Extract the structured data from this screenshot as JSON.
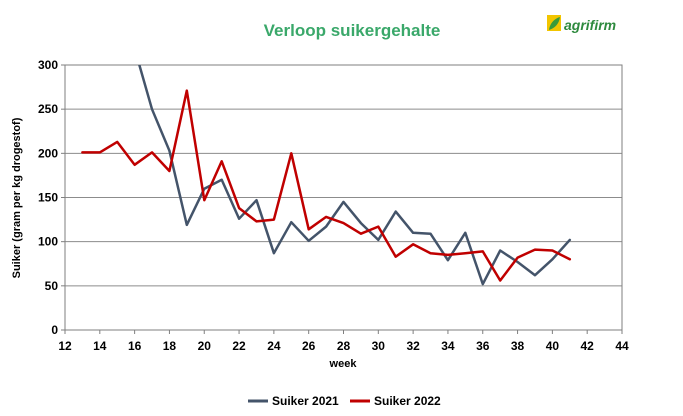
{
  "logo": {
    "text": "agrifirm"
  },
  "chart_data": {
    "type": "line",
    "title": "Verloop suikergehalte",
    "xlabel": "week",
    "ylabel": "Suiker (gram per kg drogestof)",
    "xlim": [
      12,
      44
    ],
    "ylim": [
      0,
      300
    ],
    "xticks": [
      12,
      14,
      16,
      18,
      20,
      22,
      24,
      26,
      28,
      30,
      32,
      34,
      36,
      38,
      40,
      42,
      44
    ],
    "yticks": [
      0,
      50,
      100,
      150,
      200,
      250,
      300
    ],
    "grid": "horizontal",
    "legend_position": "bottom",
    "series": [
      {
        "name": "Suiker 2021",
        "color": "#44546a",
        "points": [
          [
            16.2,
            305
          ],
          [
            17,
            250
          ],
          [
            18,
            203
          ],
          [
            19,
            119
          ],
          [
            20,
            160
          ],
          [
            21,
            170
          ],
          [
            22,
            126
          ],
          [
            23,
            147
          ],
          [
            24,
            87
          ],
          [
            25,
            122
          ],
          [
            26,
            101
          ],
          [
            27,
            117
          ],
          [
            28,
            145
          ],
          [
            29,
            121
          ],
          [
            30,
            102
          ],
          [
            31,
            134
          ],
          [
            32,
            110
          ],
          [
            33,
            109
          ],
          [
            34,
            79
          ],
          [
            35,
            110
          ],
          [
            36,
            52
          ],
          [
            37,
            90
          ],
          [
            38,
            77
          ],
          [
            39,
            62
          ],
          [
            40,
            80
          ],
          [
            41,
            102
          ]
        ]
      },
      {
        "name": "Suiker 2022",
        "color": "#c00000",
        "points": [
          [
            13,
            201
          ],
          [
            14,
            201
          ],
          [
            15,
            213
          ],
          [
            16,
            187
          ],
          [
            17,
            201
          ],
          [
            18,
            180
          ],
          [
            19,
            271
          ],
          [
            20,
            147
          ],
          [
            21,
            191
          ],
          [
            22,
            138
          ],
          [
            23,
            123
          ],
          [
            24,
            125
          ],
          [
            25,
            200
          ],
          [
            26,
            114
          ],
          [
            27,
            128
          ],
          [
            28,
            121
          ],
          [
            29,
            109
          ],
          [
            30,
            117
          ],
          [
            31,
            83
          ],
          [
            32,
            97
          ],
          [
            33,
            87
          ],
          [
            34,
            85
          ],
          [
            35,
            87
          ],
          [
            36,
            89
          ],
          [
            37,
            56
          ],
          [
            38,
            82
          ],
          [
            39,
            91
          ],
          [
            40,
            90
          ],
          [
            41,
            80
          ]
        ]
      }
    ]
  }
}
